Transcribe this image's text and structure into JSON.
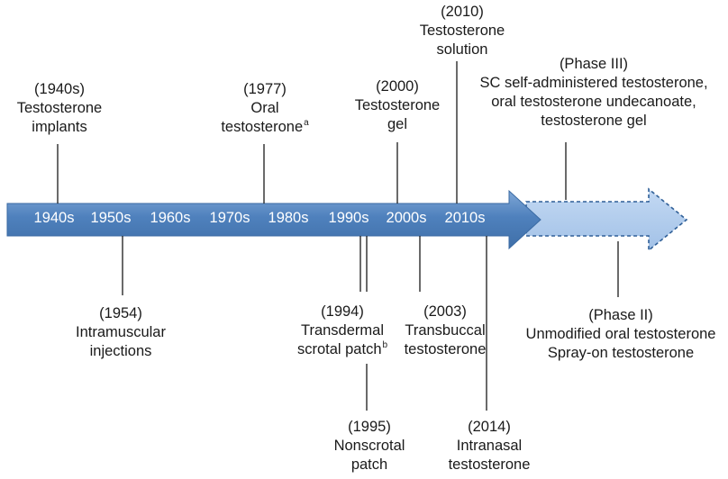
{
  "decades": [
    "1940s",
    "1950s",
    "1960s",
    "1970s",
    "1980s",
    "1990s",
    "2000s",
    "2010s"
  ],
  "events": {
    "e1940": {
      "year": "(1940s)",
      "line1": "Testosterone",
      "line2": "implants"
    },
    "e1954": {
      "year": "(1954)",
      "line1": "Intramuscular",
      "line2": "injections"
    },
    "e1977": {
      "year": "(1977)",
      "line1": "Oral",
      "line2": "testosterone",
      "note": "a"
    },
    "e1994": {
      "year": "(1994)",
      "line1": "Transdermal",
      "line2": "scrotal patch",
      "note": "b"
    },
    "e1995": {
      "year": "(1995)",
      "line1": "Nonscrotal",
      "line2": "patch"
    },
    "e2000": {
      "year": "(2000)",
      "line1": "Testosterone",
      "line2": "gel"
    },
    "e2003": {
      "year": "(2003)",
      "line1": "Transbuccal",
      "line2": "testosterone"
    },
    "e2010": {
      "year": "(2010)",
      "line1": "Testosterone",
      "line2": "solution"
    },
    "e2014": {
      "year": "(2014)",
      "line1": "Intranasal",
      "line2": "testosterone"
    }
  },
  "phase3": {
    "title": "(Phase III)",
    "line1": "SC self-administered testosterone,",
    "line2": "oral testosterone undecanoate,",
    "line3": "testosterone gel"
  },
  "phase2": {
    "title": "(Phase II)",
    "line1": "Unmodified oral testosterone",
    "line2": "Spray-on testosterone"
  },
  "colors": {
    "arrow_solid": "#4f81bd",
    "arrow_solid_light": "#7fa7d6",
    "arrow_future": "#a9c8ee",
    "arrow_future_border": "#2f5f97",
    "connector": "#1a1a1a"
  }
}
